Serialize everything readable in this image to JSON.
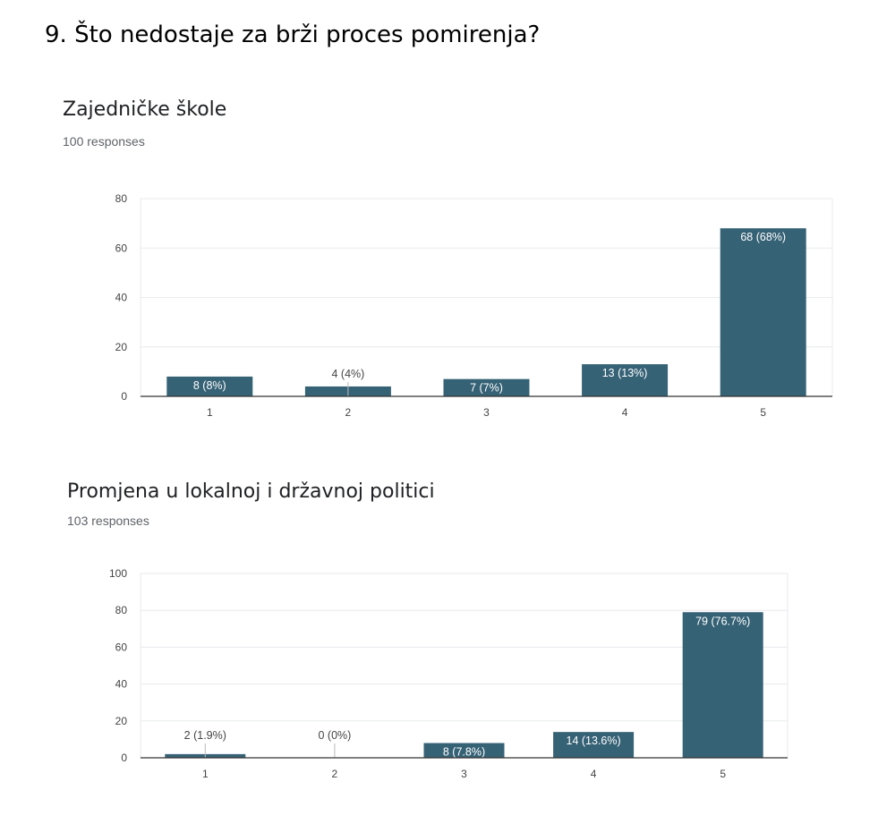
{
  "page": {
    "heading": "9. Što nedostaje za brži proces pomirenja?"
  },
  "colors": {
    "bar": "#366276",
    "grid": "#e8eaed",
    "axis": "#333333",
    "tick_label": "#444444",
    "label_outside": "#444444",
    "label_inside": "#ffffff"
  },
  "chart_data": [
    {
      "type": "bar",
      "title": "Zajedničke škole",
      "subtitle": "100 responses",
      "categories": [
        "1",
        "2",
        "3",
        "4",
        "5"
      ],
      "values": [
        8,
        4,
        7,
        13,
        68
      ],
      "data_labels": [
        "8 (8%)",
        "4 (4%)",
        "7 (7%)",
        "13 (13%)",
        "68 (68%)"
      ],
      "ylim": [
        0,
        80
      ],
      "yticks": [
        0,
        20,
        40,
        60,
        80
      ],
      "grid": true,
      "xlabel": "",
      "ylabel": ""
    },
    {
      "type": "bar",
      "title": "Promjena u lokalnoj i državnoj politici",
      "subtitle": "103 responses",
      "categories": [
        "1",
        "2",
        "3",
        "4",
        "5"
      ],
      "values": [
        2,
        0,
        8,
        14,
        79
      ],
      "data_labels": [
        "2 (1.9%)",
        "0 (0%)",
        "8 (7.8%)",
        "14 (13.6%)",
        "79 (76.7%)"
      ],
      "ylim": [
        0,
        100
      ],
      "yticks": [
        0,
        20,
        40,
        60,
        80,
        100
      ],
      "grid": true,
      "xlabel": "",
      "ylabel": ""
    }
  ]
}
